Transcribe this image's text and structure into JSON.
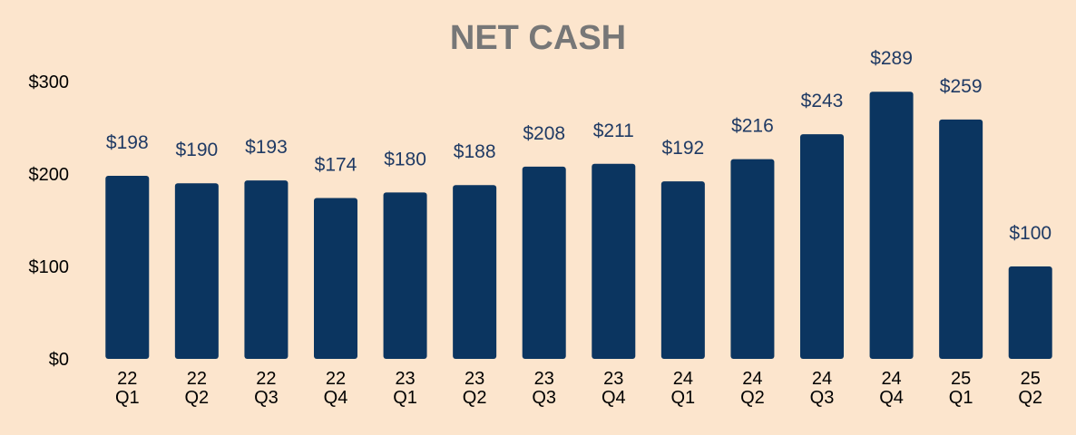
{
  "chart_data": {
    "type": "bar",
    "title": "NET CASH",
    "xlabel": "",
    "ylabel": "",
    "ylim": [
      0,
      300
    ],
    "y_ticks": [
      0,
      100,
      200,
      300
    ],
    "y_tick_labels": [
      "$0",
      "$100",
      "$200",
      "$300"
    ],
    "categories": [
      [
        "22",
        "Q1"
      ],
      [
        "22",
        "Q2"
      ],
      [
        "22",
        "Q3"
      ],
      [
        "22",
        "Q4"
      ],
      [
        "23",
        "Q1"
      ],
      [
        "23",
        "Q2"
      ],
      [
        "23",
        "Q3"
      ],
      [
        "23",
        "Q4"
      ],
      [
        "24",
        "Q1"
      ],
      [
        "24",
        "Q2"
      ],
      [
        "24",
        "Q3"
      ],
      [
        "24",
        "Q4"
      ],
      [
        "25",
        "Q1"
      ],
      [
        "25",
        "Q2"
      ]
    ],
    "values": [
      198,
      190,
      193,
      174,
      180,
      188,
      208,
      211,
      192,
      216,
      243,
      289,
      259,
      100
    ],
    "data_labels": [
      "$198",
      "$190",
      "$193",
      "$174",
      "$180",
      "$188",
      "$208",
      "$211",
      "$192",
      "$216",
      "$243",
      "$289",
      "$259",
      "$100"
    ],
    "grid": false,
    "legend": "none",
    "colors": {
      "background": "#fce5cd",
      "bar": "#0b3560",
      "data_label": "#1f3a64",
      "title": "#777777",
      "axis_text": "#000000"
    }
  }
}
